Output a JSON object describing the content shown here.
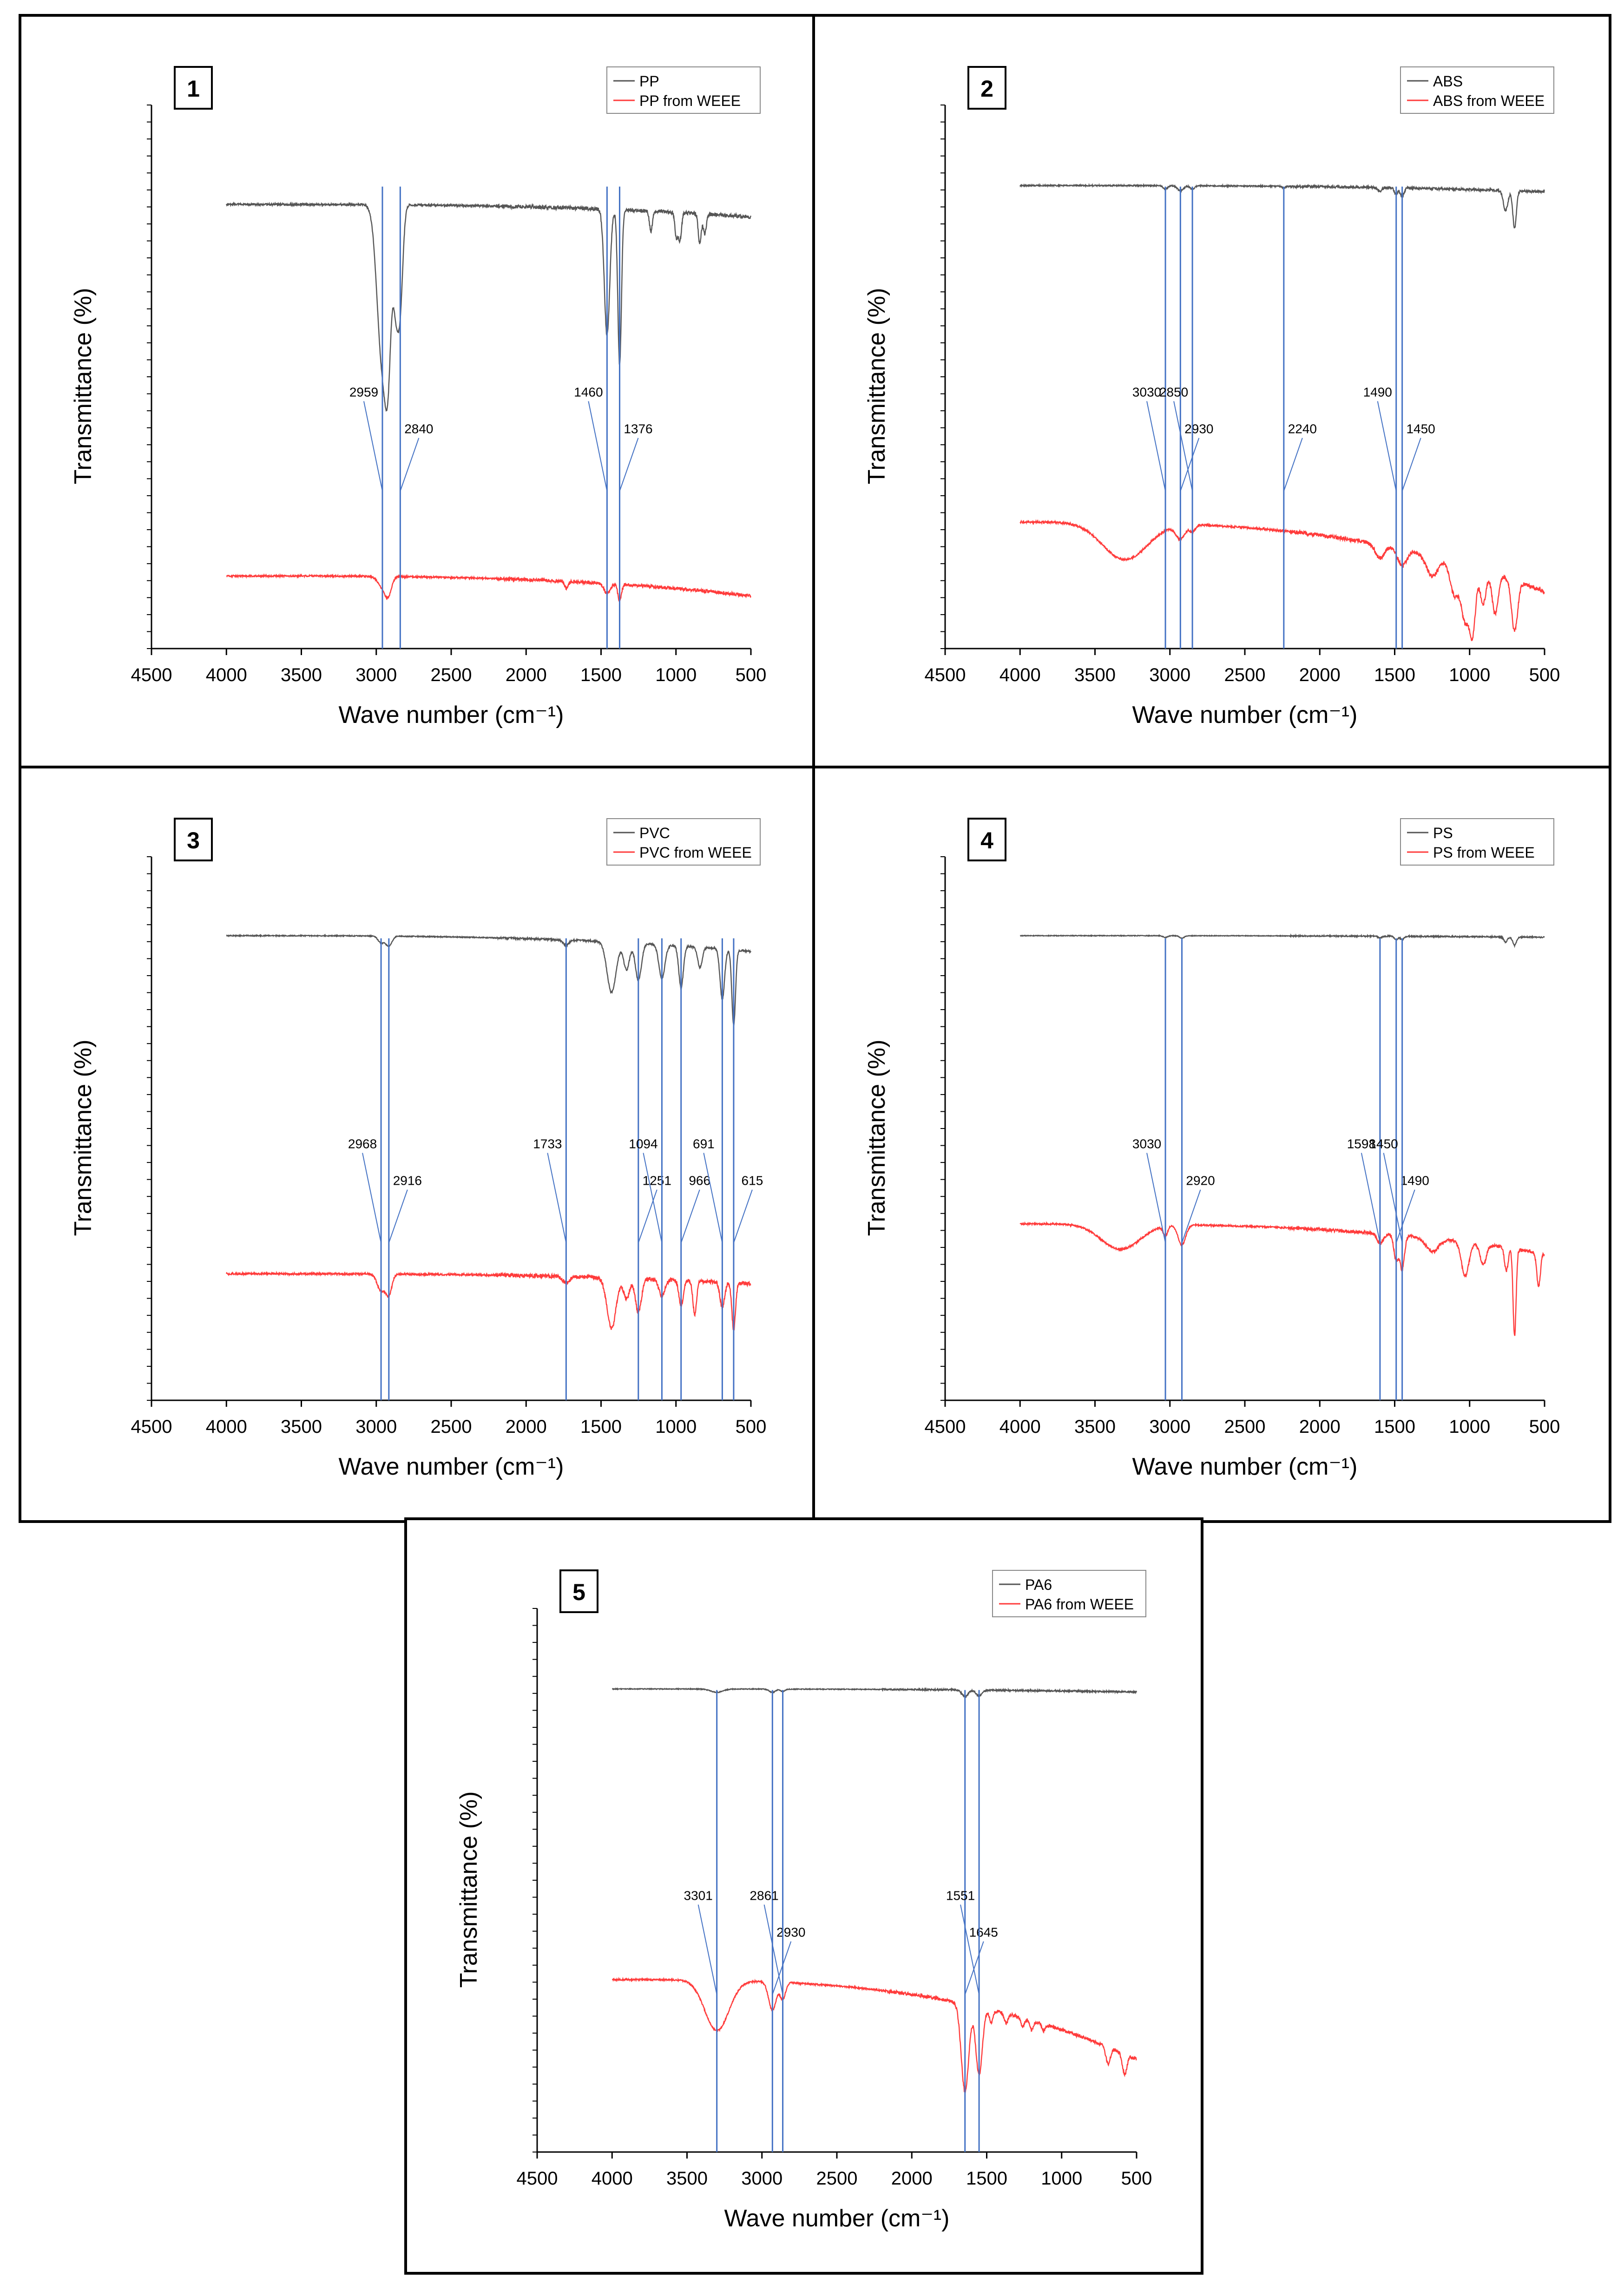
{
  "chart_data": [
    {
      "type": "line",
      "panel_label": "1",
      "xlabel": "Wave number (cm⁻¹)",
      "ylabel": "Transmittance (%)",
      "xlim": [
        4500,
        500
      ],
      "xticks": [
        "4500",
        "4000",
        "3500",
        "3000",
        "2500",
        "2000",
        "1500",
        "1000",
        "500"
      ],
      "legend": {
        "position": "top-right"
      },
      "colors": {
        "reference": "#555555",
        "weee": "#ff3b3b",
        "marker": "#4472c4"
      },
      "series": [
        {
          "name": "PP",
          "role": "reference",
          "level": 0.18,
          "bands": [
            [
              2959,
              0.95,
              35
            ],
            [
              2920,
              0.62,
              20
            ],
            [
              2870,
              0.5,
              18
            ],
            [
              2840,
              0.55,
              18
            ],
            [
              1460,
              0.75,
              18
            ],
            [
              1376,
              0.92,
              12
            ],
            [
              1167,
              0.12,
              10
            ],
            [
              997,
              0.15,
              10
            ],
            [
              973,
              0.16,
              10
            ],
            [
              841,
              0.18,
              10
            ],
            [
              808,
              0.12,
              10
            ]
          ],
          "end_level": 0.26,
          "noise": 0.012
        },
        {
          "name": "PP from WEEE",
          "role": "weee",
          "level": 0.82,
          "bands": [
            [
              2959,
              0.06,
              30
            ],
            [
              2920,
              0.1,
              22
            ],
            [
              1460,
              0.06,
              20
            ],
            [
              1376,
              0.1,
              12
            ],
            [
              1730,
              0.04,
              12
            ]
          ],
          "end_level": 0.92,
          "noise": 0.008
        }
      ],
      "markers": [
        {
          "x": 2959,
          "label": "2959"
        },
        {
          "x": 2840,
          "label": "2840"
        },
        {
          "x": 1460,
          "label": "1460"
        },
        {
          "x": 1376,
          "label": "1376"
        }
      ]
    },
    {
      "type": "line",
      "panel_label": "2",
      "xlabel": "Wave number (cm⁻¹)",
      "ylabel": "Transmittance (%)",
      "xlim": [
        4500,
        500
      ],
      "xticks": [
        "4500",
        "4000",
        "3500",
        "3000",
        "2500",
        "2000",
        "1500",
        "1000",
        "500"
      ],
      "legend": {
        "position": "top-right"
      },
      "colors": {
        "reference": "#555555",
        "weee": "#ff3b3b",
        "marker": "#4472c4"
      },
      "series": [
        {
          "name": "ABS",
          "role": "reference",
          "level": 0.06,
          "bands": [
            [
              3030,
              0.02,
              15
            ],
            [
              2930,
              0.03,
              20
            ],
            [
              2850,
              0.02,
              15
            ],
            [
              2240,
              0.01,
              10
            ],
            [
              1600,
              0.02,
              15
            ],
            [
              1490,
              0.04,
              12
            ],
            [
              1450,
              0.05,
              12
            ],
            [
              760,
              0.12,
              15
            ],
            [
              700,
              0.22,
              12
            ]
          ],
          "end_level": 0.1,
          "noise": 0.008
        },
        {
          "name": "ABS from WEEE",
          "role": "weee",
          "level": 0.55,
          "bands": [
            [
              3300,
              0.22,
              150
            ],
            [
              2930,
              0.08,
              30
            ],
            [
              2850,
              0.04,
              20
            ],
            [
              1600,
              0.08,
              30
            ],
            [
              1450,
              0.1,
              30
            ],
            [
              1250,
              0.12,
              40
            ],
            [
              1100,
              0.2,
              30
            ],
            [
              1030,
              0.32,
              25
            ],
            [
              980,
              0.38,
              20
            ],
            [
              910,
              0.2,
              20
            ],
            [
              830,
              0.24,
              20
            ],
            [
              700,
              0.3,
              20
            ]
          ],
          "end_level": 0.9,
          "noise": 0.01
        }
      ],
      "markers": [
        {
          "x": 3030,
          "label": "3030"
        },
        {
          "x": 2930,
          "label": "2930"
        },
        {
          "x": 2850,
          "label": "2850"
        },
        {
          "x": 2240,
          "label": "2240"
        },
        {
          "x": 1490,
          "label": "1490"
        },
        {
          "x": 1450,
          "label": "1450"
        }
      ]
    },
    {
      "type": "line",
      "panel_label": "3",
      "xlabel": "Wave number (cm⁻¹)",
      "ylabel": "Transmittance (%)",
      "xlim": [
        4500,
        500
      ],
      "xticks": [
        "4500",
        "4000",
        "3500",
        "3000",
        "2500",
        "2000",
        "1500",
        "1000",
        "500"
      ],
      "legend": {
        "position": "top-right"
      },
      "colors": {
        "reference": "#555555",
        "weee": "#ff3b3b",
        "marker": "#4472c4"
      },
      "series": [
        {
          "name": "PVC",
          "role": "reference",
          "level": 0.05,
          "bands": [
            [
              2968,
              0.04,
              20
            ],
            [
              2916,
              0.06,
              20
            ],
            [
              1733,
              0.03,
              20
            ],
            [
              1430,
              0.3,
              30
            ],
            [
              1330,
              0.16,
              20
            ],
            [
              1251,
              0.22,
              20
            ],
            [
              1094,
              0.2,
              20
            ],
            [
              966,
              0.25,
              15
            ],
            [
              840,
              0.12,
              15
            ],
            [
              691,
              0.3,
              15
            ],
            [
              615,
              0.45,
              12
            ]
          ],
          "end_level": 0.15,
          "noise": 0.006
        },
        {
          "name": "PVC from WEEE",
          "role": "weee",
          "level": 0.55,
          "bands": [
            [
              2968,
              0.1,
              25
            ],
            [
              2916,
              0.12,
              20
            ],
            [
              1733,
              0.04,
              20
            ],
            [
              1430,
              0.3,
              30
            ],
            [
              1330,
              0.12,
              20
            ],
            [
              1251,
              0.2,
              20
            ],
            [
              1094,
              0.1,
              20
            ],
            [
              966,
              0.15,
              15
            ],
            [
              875,
              0.2,
              12
            ],
            [
              691,
              0.15,
              15
            ],
            [
              615,
              0.28,
              12
            ]
          ],
          "end_level": 0.6,
          "noise": 0.01
        }
      ],
      "markers": [
        {
          "x": 2968,
          "label": "2968"
        },
        {
          "x": 2916,
          "label": "2916"
        },
        {
          "x": 1733,
          "label": "1733"
        },
        {
          "x": 1251,
          "label": "1251"
        },
        {
          "x": 1094,
          "label": "1094"
        },
        {
          "x": 966,
          "label": "966"
        },
        {
          "x": 691,
          "label": "691"
        },
        {
          "x": 615,
          "label": "615"
        }
      ]
    },
    {
      "type": "line",
      "panel_label": "4",
      "xlabel": "Wave number (cm⁻¹)",
      "ylabel": "Transmittance (%)",
      "xlim": [
        4500,
        500
      ],
      "xticks": [
        "4500",
        "4000",
        "3500",
        "3000",
        "2500",
        "2000",
        "1500",
        "1000",
        "500"
      ],
      "legend": {
        "position": "top-right"
      },
      "colors": {
        "reference": "#555555",
        "weee": "#ff3b3b",
        "marker": "#4472c4"
      },
      "series": [
        {
          "name": "PS",
          "role": "reference",
          "level": 0.05,
          "bands": [
            [
              3030,
              0.01,
              15
            ],
            [
              2920,
              0.015,
              15
            ],
            [
              1598,
              0.01,
              12
            ],
            [
              1490,
              0.02,
              12
            ],
            [
              1450,
              0.02,
              12
            ],
            [
              760,
              0.03,
              12
            ],
            [
              700,
              0.05,
              12
            ]
          ],
          "end_level": 0.06,
          "noise": 0.004
        },
        {
          "name": "PS from WEEE",
          "role": "weee",
          "level": 0.3,
          "bands": [
            [
              3330,
              0.15,
              130
            ],
            [
              3030,
              0.06,
              15
            ],
            [
              2920,
              0.12,
              25
            ],
            [
              1598,
              0.06,
              20
            ],
            [
              1490,
              0.15,
              15
            ],
            [
              1450,
              0.2,
              15
            ],
            [
              1250,
              0.08,
              40
            ],
            [
              1030,
              0.2,
              25
            ],
            [
              910,
              0.12,
              20
            ],
            [
              755,
              0.14,
              12
            ],
            [
              700,
              0.52,
              10
            ],
            [
              540,
              0.2,
              12
            ]
          ],
          "end_level": 0.45,
          "noise": 0.008
        }
      ],
      "markers": [
        {
          "x": 3030,
          "label": "3030"
        },
        {
          "x": 2920,
          "label": "2920"
        },
        {
          "x": 1598,
          "label": "1598"
        },
        {
          "x": 1490,
          "label": "1490"
        },
        {
          "x": 1450,
          "label": "1450"
        }
      ]
    },
    {
      "type": "line",
      "panel_label": "5",
      "xlabel": "Wave number (cm⁻¹)",
      "ylabel": "Transmittance (%)",
      "xlim": [
        4500,
        500
      ],
      "xticks": [
        "4500",
        "4000",
        "3500",
        "3000",
        "2500",
        "2000",
        "1500",
        "1000",
        "500"
      ],
      "legend": {
        "position": "top-right"
      },
      "colors": {
        "reference": "#555555",
        "weee": "#ff3b3b",
        "marker": "#4472c4"
      },
      "series": [
        {
          "name": "PA6",
          "role": "reference",
          "level": 0.06,
          "bands": [
            [
              3301,
              0.02,
              40
            ],
            [
              2930,
              0.02,
              20
            ],
            [
              2861,
              0.015,
              15
            ],
            [
              1645,
              0.04,
              20
            ],
            [
              1551,
              0.035,
              20
            ]
          ],
          "end_level": 0.08,
          "noise": 0.005
        },
        {
          "name": "PA6 from WEEE",
          "role": "weee",
          "level": 0.32,
          "bands": [
            [
              3301,
              0.3,
              80
            ],
            [
              2930,
              0.17,
              25
            ],
            [
              2861,
              0.1,
              18
            ],
            [
              1645,
              0.52,
              25
            ],
            [
              1551,
              0.4,
              22
            ],
            [
              1470,
              0.08,
              12
            ],
            [
              1370,
              0.06,
              12
            ],
            [
              1260,
              0.05,
              12
            ],
            [
              1200,
              0.06,
              12
            ],
            [
              1120,
              0.04,
              12
            ],
            [
              690,
              0.1,
              15
            ],
            [
              580,
              0.12,
              15
            ]
          ],
          "end_level": 0.72,
          "noise": 0.008
        }
      ],
      "markers": [
        {
          "x": 3301,
          "label": "3301"
        },
        {
          "x": 2930,
          "label": "2930"
        },
        {
          "x": 2861,
          "label": "2861"
        },
        {
          "x": 1645,
          "label": "1645"
        },
        {
          "x": 1551,
          "label": "1551"
        }
      ]
    }
  ]
}
